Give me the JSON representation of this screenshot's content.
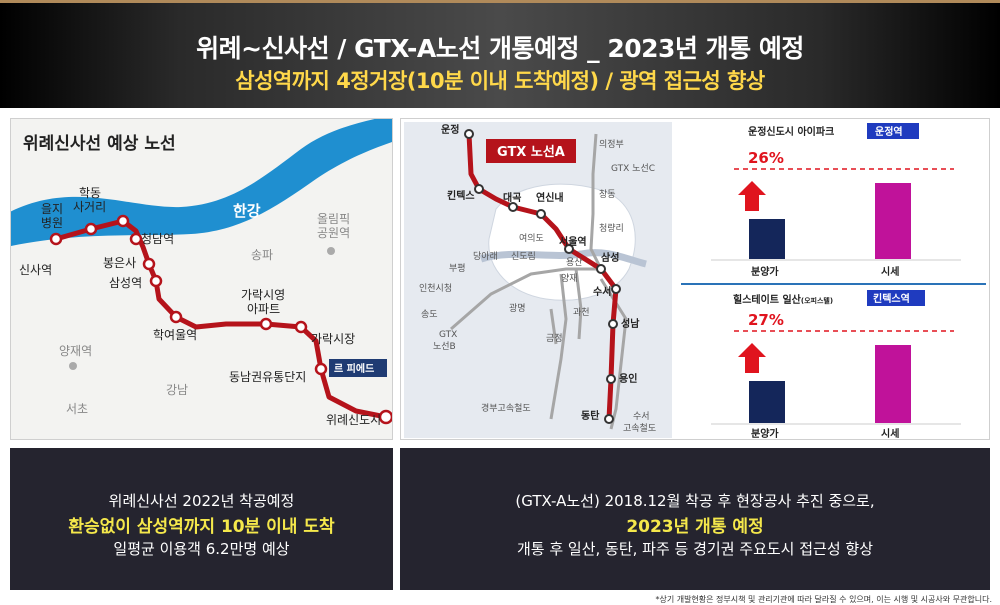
{
  "header": {
    "title": "위례~신사선 / GTX-A노선 개통예정 _ 2023년 개통 예정",
    "subtitle": "삼성역까지 4정거장(10분 이내 도착예정) / 광역 접근성 향상"
  },
  "left_map": {
    "title": "위례신사선 예상 노선",
    "river": "한강",
    "stations": [
      "신사역",
      "을지\n병원",
      "학동\n사거리",
      "청담역",
      "봉은사",
      "삼성역",
      "학여울역",
      "가락시영\n아파트",
      "가락시장",
      "동남권유통단지",
      "위례신도시"
    ],
    "districts": [
      "올림픽\n공원역",
      "송파",
      "양재역",
      "강남",
      "서초"
    ],
    "tag": "르 피에드"
  },
  "right_map": {
    "tag": "GTX 노선A",
    "labels": [
      "운정",
      "킨텍스",
      "대곡",
      "연신내",
      "서울역",
      "삼성",
      "수서",
      "성남",
      "용인",
      "동탄",
      "의정부",
      "GTX 노선C",
      "창동",
      "청량리",
      "여의도",
      "신도림",
      "당아래",
      "부평",
      "인천시청",
      "송도",
      "GTX\n노선B",
      "광명",
      "금정",
      "과천",
      "용산",
      "양재",
      "경부고속철도",
      "수서\n고속철도"
    ]
  },
  "chart_top": {
    "title": "운정신도시 아이파크",
    "badge": "운정역",
    "percent": "26%",
    "categories": [
      "분양가",
      "시세"
    ],
    "colors": [
      "#14265a",
      "#c0129a"
    ]
  },
  "chart_bottom": {
    "title": "힐스테이트 일산",
    "title_small": "(오피스텔)",
    "badge": "킨텍스역",
    "percent": "27%",
    "categories": [
      "분양가",
      "시세"
    ],
    "colors": [
      "#14265a",
      "#c0129a"
    ]
  },
  "box_left": {
    "line1": "위례신사선 2022년 착공예정",
    "line2": "환승없이 삼성역까지 10분 이내 도착",
    "line3": "일평균 이용객 6.2만명 예상"
  },
  "box_right": {
    "line1": "(GTX-A노선) 2018.12월 착공 후 현장공사 추진 중으로,",
    "line2": "2023년 개통 예정",
    "line3": "개통 후 일산, 동탄, 파주 등 경기권 주요도시 접근성 향상"
  },
  "footnote": "*상기 개발현황은 정부시책 및 관리기관에 따라 달라질 수 있으며, 이는 시행 및 시공사와 무관합니다."
}
